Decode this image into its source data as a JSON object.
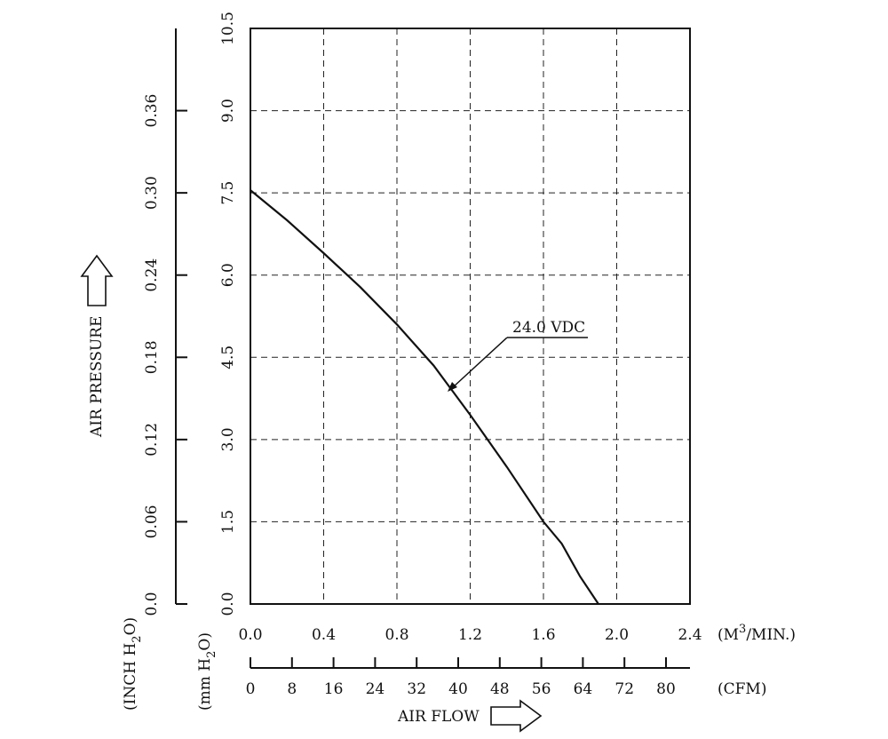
{
  "chart_data": {
    "type": "line",
    "x_primary": {
      "unit_label": "(M",
      "unit_sup": "3",
      "unit_tail": "/MIN.)",
      "ticks": [
        "0.0",
        "0.4",
        "0.8",
        "1.2",
        "1.6",
        "2.0",
        "2.4"
      ],
      "range": [
        0,
        2.4
      ]
    },
    "x_secondary": {
      "unit_label": "(CFM)",
      "ticks": [
        "0",
        "8",
        "16",
        "24",
        "32",
        "40",
        "48",
        "56",
        "64",
        "72",
        "80"
      ]
    },
    "y_primary": {
      "unit_label": "(mm H",
      "unit_sub": "2",
      "unit_tail": "O)",
      "ticks": [
        "0.0",
        "1.5",
        "3.0",
        "4.5",
        "6.0",
        "7.5",
        "9.0",
        "10.5"
      ],
      "range": [
        0,
        10.5
      ]
    },
    "y_secondary": {
      "unit_label": "(INCH H",
      "unit_sub": "2",
      "unit_tail": "O)",
      "ticks": [
        "0.0",
        "0.06",
        "0.12",
        "0.18",
        "0.24",
        "0.30",
        "0.36"
      ]
    },
    "xlabel": "AIR FLOW",
    "ylabel": "AIR PRESSURE",
    "series": [
      {
        "name": "24.0 VDC",
        "x": [
          0.0,
          0.2,
          0.4,
          0.6,
          0.8,
          1.0,
          1.2,
          1.4,
          1.6,
          1.7,
          1.8,
          1.9
        ],
        "y": [
          7.55,
          7.0,
          6.4,
          5.78,
          5.1,
          4.35,
          3.45,
          2.5,
          1.5,
          1.1,
          0.5,
          0.0
        ]
      }
    ],
    "grid": true
  }
}
